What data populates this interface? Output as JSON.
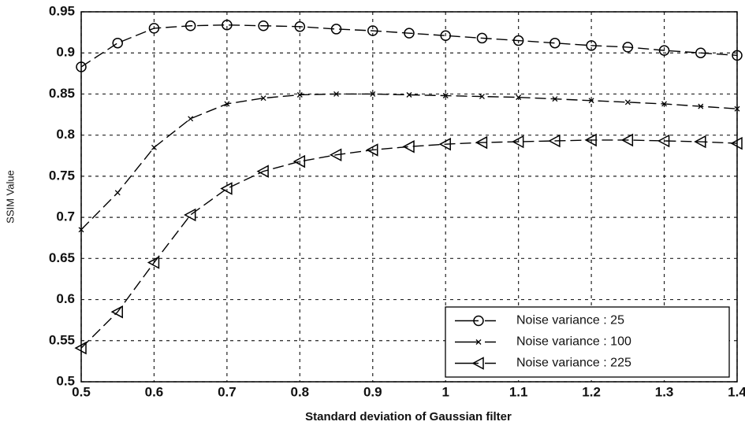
{
  "chart_data": {
    "type": "line",
    "x_label": "Standard deviation of Gaussian filter",
    "y_label": "SSIM Value",
    "x": [
      0.5,
      0.55,
      0.6,
      0.65,
      0.7,
      0.75,
      0.8,
      0.85,
      0.9,
      0.95,
      1.0,
      1.05,
      1.1,
      1.15,
      1.2,
      1.25,
      1.3,
      1.35,
      1.4
    ],
    "series": [
      {
        "name": "Noise variance : 25",
        "color": "#000000",
        "marker": "circle",
        "values": [
          0.883,
          0.912,
          0.93,
          0.933,
          0.934,
          0.933,
          0.932,
          0.929,
          0.927,
          0.924,
          0.921,
          0.918,
          0.915,
          0.912,
          0.909,
          0.907,
          0.903,
          0.9,
          0.897
        ]
      },
      {
        "name": "Noise variance : 100",
        "color": "#000000",
        "marker": "x",
        "values": [
          0.685,
          0.73,
          0.785,
          0.82,
          0.838,
          0.845,
          0.849,
          0.85,
          0.85,
          0.849,
          0.848,
          0.847,
          0.846,
          0.844,
          0.842,
          0.84,
          0.838,
          0.835,
          0.832
        ]
      },
      {
        "name": "Noise variance : 225",
        "color": "#000000",
        "marker": "triangle-left",
        "values": [
          0.541,
          0.585,
          0.645,
          0.703,
          0.735,
          0.756,
          0.768,
          0.776,
          0.782,
          0.786,
          0.789,
          0.791,
          0.792,
          0.793,
          0.794,
          0.794,
          0.793,
          0.792,
          0.79
        ]
      }
    ],
    "xlim": [
      0.5,
      1.4
    ],
    "xticks": [
      0.5,
      0.6,
      0.7,
      0.8,
      0.9,
      1,
      1.1,
      1.2,
      1.3,
      1.4
    ],
    "ylim": [
      0.5,
      0.95
    ],
    "yticks": [
      0.5,
      0.55,
      0.6,
      0.65,
      0.7,
      0.75,
      0.8,
      0.85,
      0.9,
      0.95
    ],
    "grid": true,
    "legend": "lower right"
  }
}
